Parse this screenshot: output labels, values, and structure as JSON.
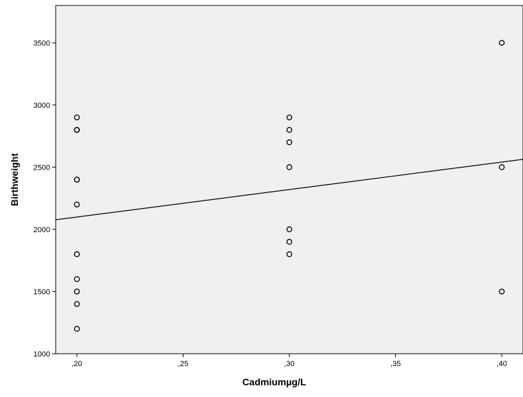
{
  "chart_data": {
    "type": "scatter",
    "title": "",
    "xlabel": "Cadmiumµg/L",
    "ylabel": "Birthweight",
    "xlim": [
      0.19,
      0.41
    ],
    "ylim": [
      1000,
      3800
    ],
    "x_ticks": [
      0.2,
      0.25,
      0.3,
      0.35,
      0.4
    ],
    "x_tick_labels": [
      ",20",
      ",25",
      ",30",
      ",35",
      ",40"
    ],
    "y_ticks": [
      1000,
      1500,
      2000,
      2500,
      3000,
      3500
    ],
    "y_tick_labels": [
      "1000",
      "1500",
      "2000",
      "2500",
      "3000",
      "3500"
    ],
    "grid": false,
    "legend": "none",
    "plot_background": "#f0f0f0",
    "marker_color": "#000000",
    "points": [
      {
        "x": 0.2,
        "y": 2900
      },
      {
        "x": 0.2,
        "y": 2800
      },
      {
        "x": 0.2,
        "y": 2800
      },
      {
        "x": 0.2,
        "y": 2400
      },
      {
        "x": 0.2,
        "y": 2400
      },
      {
        "x": 0.2,
        "y": 2200
      },
      {
        "x": 0.2,
        "y": 1800
      },
      {
        "x": 0.2,
        "y": 1600
      },
      {
        "x": 0.2,
        "y": 1500
      },
      {
        "x": 0.2,
        "y": 1400
      },
      {
        "x": 0.2,
        "y": 1200
      },
      {
        "x": 0.3,
        "y": 2900
      },
      {
        "x": 0.3,
        "y": 2800
      },
      {
        "x": 0.3,
        "y": 2700
      },
      {
        "x": 0.3,
        "y": 2500
      },
      {
        "x": 0.3,
        "y": 2000
      },
      {
        "x": 0.3,
        "y": 1900
      },
      {
        "x": 0.3,
        "y": 1800
      },
      {
        "x": 0.4,
        "y": 3500
      },
      {
        "x": 0.4,
        "y": 2500
      },
      {
        "x": 0.4,
        "y": 1500
      }
    ],
    "fit_line": {
      "x": [
        0.19,
        0.41
      ],
      "y": [
        2077,
        2563
      ]
    }
  }
}
